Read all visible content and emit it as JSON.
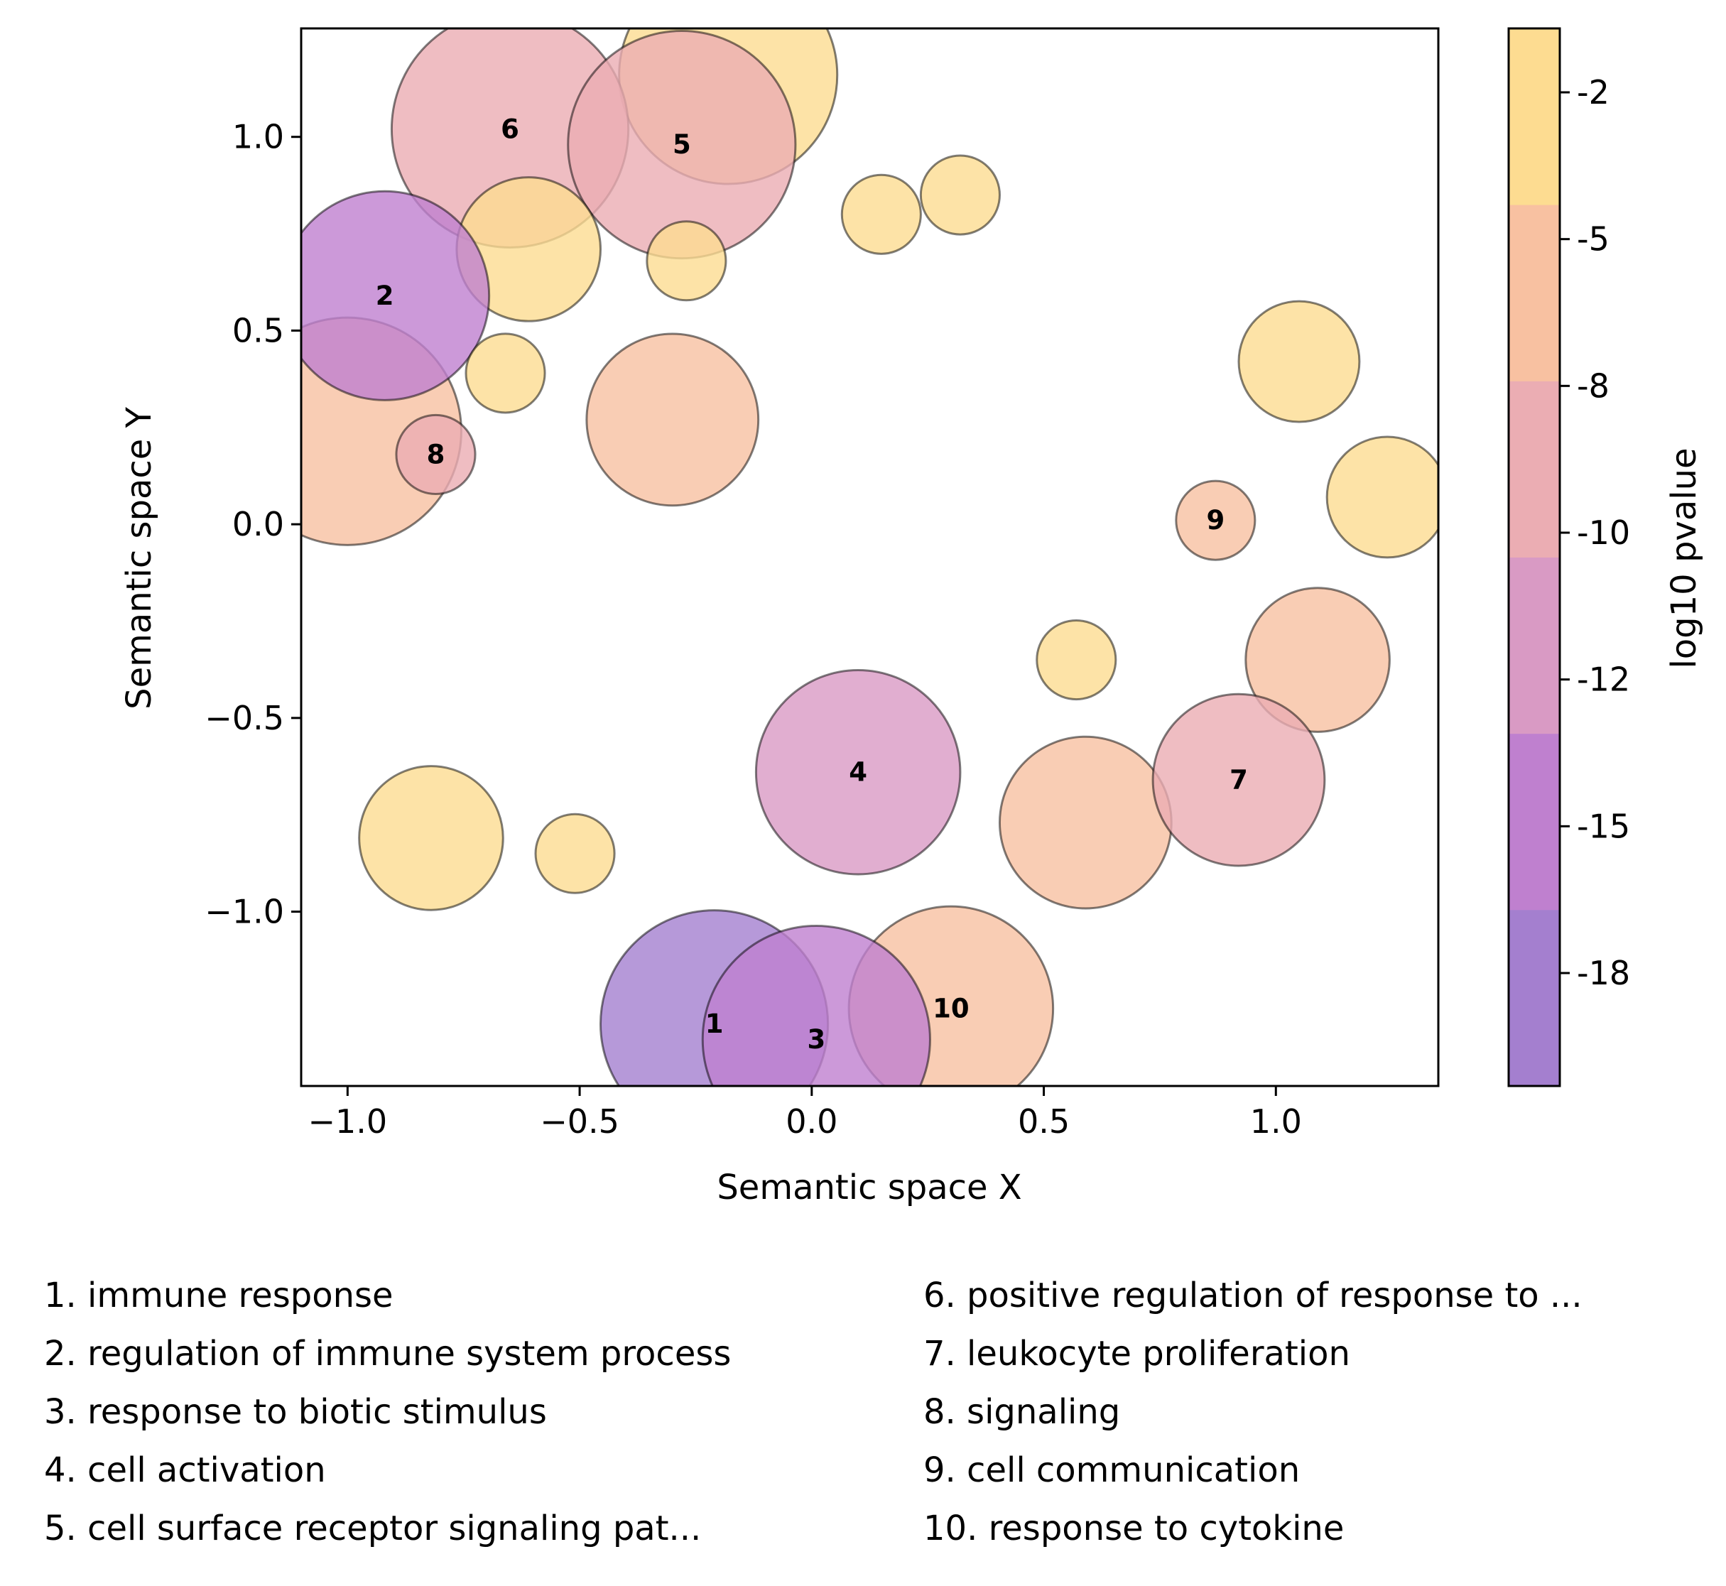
{
  "chart_data": {
    "type": "scatter",
    "xlabel": "Semantic space X",
    "ylabel": "Semantic space Y",
    "xlim": [
      -1.1,
      1.35
    ],
    "ylim": [
      -1.45,
      1.28
    ],
    "x_ticks": [
      -1.0,
      -0.5,
      0.0,
      0.5,
      1.0
    ],
    "x_tick_labels": [
      "−1.0",
      "−0.5",
      "0.0",
      "0.5",
      "1.0"
    ],
    "y_ticks": [
      -1.0,
      -0.5,
      0.0,
      0.5,
      1.0
    ],
    "y_tick_labels": [
      "−1.0",
      "−0.5",
      "0.0",
      "0.5",
      "1.0"
    ],
    "grid": false,
    "colorbar": {
      "label": "log10 pvalue",
      "colormap": "plasma-discrete",
      "bands": [
        {
          "color": "#a47fcf"
        },
        {
          "color": "#bf80cf"
        },
        {
          "color": "#d99ac4"
        },
        {
          "color": "#ebadb3"
        },
        {
          "color": "#f8c1a1"
        },
        {
          "color": "#fddc91"
        }
      ],
      "ticks": [
        {
          "value": -18,
          "label": "-18"
        },
        {
          "value": -15,
          "label": "-15"
        },
        {
          "value": -12,
          "label": "-12"
        },
        {
          "value": -10,
          "label": "-10"
        },
        {
          "value": -8,
          "label": "-8"
        },
        {
          "value": -5,
          "label": "-5"
        },
        {
          "value": -2,
          "label": "-2"
        }
      ]
    },
    "points": [
      {
        "x": -0.18,
        "y": 1.16,
        "size": 0.235,
        "log10p": -2,
        "label": ""
      },
      {
        "x": -0.65,
        "y": 1.02,
        "size": 0.255,
        "log10p": -9,
        "label": "6"
      },
      {
        "x": -0.28,
        "y": 0.98,
        "size": 0.245,
        "log10p": -9,
        "label": "5"
      },
      {
        "x": -0.61,
        "y": 0.71,
        "size": 0.155,
        "log10p": -2,
        "label": ""
      },
      {
        "x": -0.27,
        "y": 0.68,
        "size": 0.085,
        "log10p": -2,
        "label": ""
      },
      {
        "x": 0.15,
        "y": 0.8,
        "size": 0.085,
        "log10p": -2,
        "label": ""
      },
      {
        "x": 0.32,
        "y": 0.85,
        "size": 0.085,
        "log10p": -2,
        "label": ""
      },
      {
        "x": -1.0,
        "y": 0.24,
        "size": 0.245,
        "log10p": -6,
        "label": ""
      },
      {
        "x": -0.92,
        "y": 0.59,
        "size": 0.225,
        "log10p": -16,
        "label": "2"
      },
      {
        "x": -0.66,
        "y": 0.39,
        "size": 0.085,
        "log10p": -2,
        "label": ""
      },
      {
        "x": -0.81,
        "y": 0.18,
        "size": 0.085,
        "log10p": -9,
        "label": "8"
      },
      {
        "x": -0.3,
        "y": 0.27,
        "size": 0.185,
        "log10p": -6,
        "label": ""
      },
      {
        "x": 1.05,
        "y": 0.42,
        "size": 0.13,
        "log10p": -2,
        "label": ""
      },
      {
        "x": 1.24,
        "y": 0.07,
        "size": 0.13,
        "log10p": -2,
        "label": ""
      },
      {
        "x": 0.87,
        "y": 0.01,
        "size": 0.085,
        "log10p": -6,
        "label": "9"
      },
      {
        "x": 0.57,
        "y": -0.35,
        "size": 0.085,
        "log10p": -2,
        "label": ""
      },
      {
        "x": 1.09,
        "y": -0.35,
        "size": 0.155,
        "log10p": -6,
        "label": ""
      },
      {
        "x": 0.1,
        "y": -0.64,
        "size": 0.22,
        "log10p": -11,
        "label": "4"
      },
      {
        "x": 0.59,
        "y": -0.77,
        "size": 0.185,
        "log10p": -6,
        "label": ""
      },
      {
        "x": 0.92,
        "y": -0.66,
        "size": 0.185,
        "log10p": -9,
        "label": "7"
      },
      {
        "x": -0.82,
        "y": -0.81,
        "size": 0.155,
        "log10p": -2,
        "label": ""
      },
      {
        "x": -0.51,
        "y": -0.85,
        "size": 0.085,
        "log10p": -2,
        "label": ""
      },
      {
        "x": 0.3,
        "y": -1.25,
        "size": 0.22,
        "log10p": -6,
        "label": "10"
      },
      {
        "x": -0.21,
        "y": -1.29,
        "size": 0.245,
        "log10p": -18,
        "label": "1"
      },
      {
        "x": 0.01,
        "y": -1.33,
        "size": 0.245,
        "log10p": -16,
        "label": "3"
      }
    ],
    "legend": [
      "1. immune response",
      "2. regulation of immune system process",
      "3. response to biotic stimulus",
      "4. cell activation",
      "5. cell surface receptor signaling pat...",
      "6. positive regulation of response to ...",
      "7. leukocyte proliferation",
      "8. signaling",
      "9. cell communication",
      "10. response to cytokine"
    ]
  }
}
